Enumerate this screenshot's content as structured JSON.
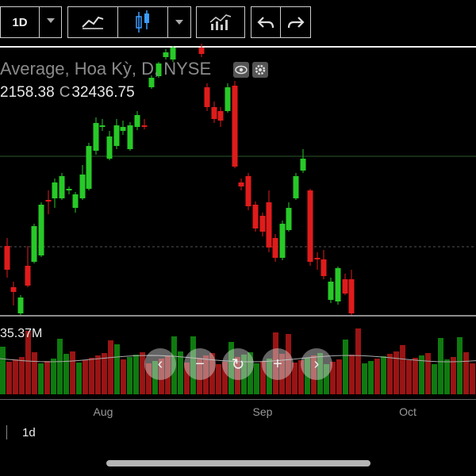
{
  "toolbar": {
    "interval_label": "1D"
  },
  "legend": {
    "title": "Average, Hoa Kỳ, D, NYSE",
    "low_fragment": "2158.38",
    "close_prefix": "C",
    "close_value": "32436.75"
  },
  "volume": {
    "label": "35.37M"
  },
  "time_axis": {
    "ticks": [
      "Aug",
      "Sep",
      "Oct"
    ]
  },
  "footer": {
    "interval": "1d"
  },
  "colors": {
    "up": "#27c927",
    "down": "#e01b1b",
    "vol_up": "#0f7a0f",
    "vol_down": "#9a1414",
    "background": "#000000"
  },
  "nav_controls": [
    "chevron-left-icon",
    "minus-icon",
    "reset-icon",
    "plus-icon",
    "chevron-right-icon"
  ]
}
